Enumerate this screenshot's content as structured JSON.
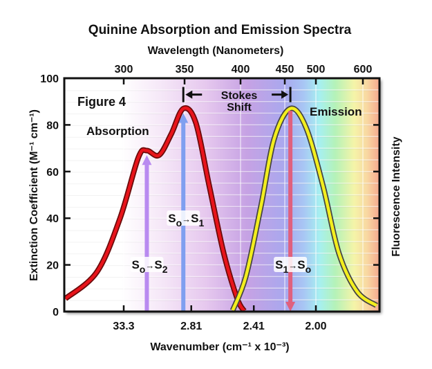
{
  "chart_data": {
    "type": "line",
    "title": "Quinine Absorption and Emission Spectra",
    "top_xlabel": "Wavelength (Nanometers)",
    "top_ticks": [
      300,
      350,
      400,
      450,
      500,
      600
    ],
    "xlabel": "Wavenumber (cm⁻¹ x 10⁻³)",
    "bottom_ticks": [
      {
        "label": "33.3",
        "wavelength": 300
      },
      {
        "label": "2.81",
        "wavelength": 356
      },
      {
        "label": "2.41",
        "wavelength": 415
      },
      {
        "label": "2.00",
        "wavelength": 500
      }
    ],
    "ylabel": "Extinction Coefficient (M⁻¹ cm⁻¹)",
    "y2label": "Fluorescence Intensity",
    "ylim": [
      0,
      100
    ],
    "yticks": [
      0,
      20,
      40,
      60,
      80,
      100
    ],
    "xlim_nm": [
      252,
      632
    ],
    "grid": true,
    "annotations": {
      "figure": "Figure 4",
      "absorption": "Absorption",
      "emission": "Emission",
      "stokes_line1": "Stokes",
      "stokes_line2": "Shift",
      "s0s2": {
        "a": "S",
        "a_sub": "o",
        "b": "S",
        "b_sub": "2",
        "wavelength": 319,
        "top": 67
      },
      "s0s1": {
        "a": "S",
        "a_sub": "o",
        "b": "S",
        "b_sub": "1",
        "wavelength": 349,
        "top": 85
      },
      "s1s0": {
        "a": "S",
        "a_sub": "1",
        "b": "S",
        "b_sub": "o",
        "wavelength": 459,
        "top": 86
      },
      "stokes_range_nm": [
        349,
        459
      ],
      "stokes_level": 93
    },
    "series": [
      {
        "name": "Absorption",
        "color": "#e8141b",
        "x": [
          252,
          278,
          297,
          312,
          319,
          329,
          339,
          349,
          360,
          372,
          385,
          397,
          404
        ],
        "y": [
          5.5,
          17,
          40,
          66,
          69,
          67,
          76,
          87,
          81,
          54,
          25,
          5.6,
          0.3
        ]
      },
      {
        "name": "Emission",
        "color": "#f3ee1e",
        "x": [
          393,
          406,
          423,
          438,
          459,
          484,
          515,
          549,
          588,
          629
        ],
        "y": [
          0.5,
          15,
          45,
          74,
          87,
          79,
          54,
          25,
          8.5,
          2.6
        ]
      }
    ]
  }
}
